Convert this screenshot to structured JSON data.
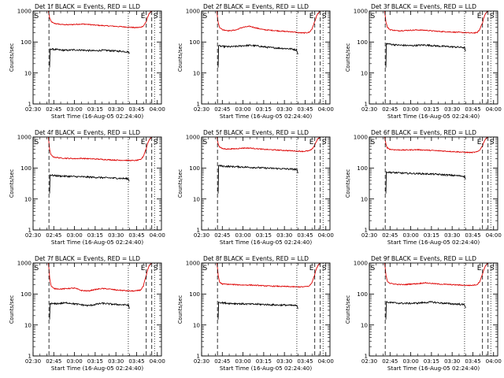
{
  "figure": {
    "background": "#ffffff",
    "axis_color": "#000000"
  },
  "shared": {
    "ylabel": "Counts/sec",
    "xlabel": "Start Time (16-Aug-05 02:24:40)",
    "x_tick_labels": [
      "02:30",
      "02:45",
      "03:00",
      "03:15",
      "03:30",
      "03:45",
      "04:00"
    ],
    "y_tick_labels": [
      "1",
      "10",
      "100",
      "1000"
    ],
    "marker_labels": [
      "S",
      "E",
      "S"
    ],
    "events_color": "#000000",
    "lld_color": "#dd0000"
  },
  "chart_data": [
    {
      "type": "line",
      "title": "Det 1f BLACK = Events, RED = LLD",
      "xlabel": "Start Time (16-Aug-05 02:24:40)",
      "ylabel": "Counts/sec",
      "xlim_minutes_after_0230": [
        0,
        93
      ],
      "ylim": [
        1,
        1000
      ],
      "yscale": "log",
      "vlines_minutes": {
        "dashed": [
          11.5,
          82,
          86
        ],
        "dotted": [
          69,
          88
        ]
      },
      "series": [
        {
          "name": "LLD",
          "color": "#dd0000",
          "x": [
            11,
            11.5,
            12,
            13,
            15,
            20,
            25,
            30,
            35,
            40,
            45,
            50,
            55,
            60,
            65,
            70,
            74,
            78,
            80,
            82,
            84,
            86
          ],
          "values": [
            1000,
            800,
            600,
            460,
            400,
            370,
            360,
            370,
            380,
            370,
            350,
            340,
            330,
            320,
            310,
            300,
            290,
            300,
            330,
            450,
            800,
            1000
          ]
        },
        {
          "name": "Events",
          "color": "#000000",
          "x": [
            12,
            12.2,
            15,
            20,
            25,
            30,
            35,
            40,
            45,
            50,
            55,
            60,
            65,
            69,
            70
          ],
          "values": [
            15,
            60,
            58,
            55,
            54,
            56,
            55,
            53,
            52,
            54,
            53,
            51,
            50,
            48,
            40
          ]
        }
      ]
    },
    {
      "type": "line",
      "title": "Det 2f BLACK = Events, RED = LLD",
      "xlabel": "Start Time (16-Aug-05 02:24:40)",
      "ylabel": "Counts/sec",
      "xlim_minutes_after_0230": [
        0,
        93
      ],
      "ylim": [
        1,
        1000
      ],
      "yscale": "log",
      "vlines_minutes": {
        "dashed": [
          11.5,
          82,
          86
        ],
        "dotted": [
          69,
          88
        ]
      },
      "series": [
        {
          "name": "LLD",
          "color": "#dd0000",
          "x": [
            11,
            11.5,
            12,
            13,
            15,
            20,
            25,
            30,
            35,
            40,
            45,
            50,
            55,
            60,
            65,
            70,
            74,
            78,
            80,
            82,
            84,
            86
          ],
          "values": [
            1000,
            650,
            420,
            300,
            250,
            230,
            245,
            300,
            320,
            280,
            250,
            240,
            230,
            220,
            215,
            200,
            195,
            205,
            260,
            450,
            800,
            1000
          ]
        },
        {
          "name": "Events",
          "color": "#000000",
          "x": [
            12,
            12.2,
            15,
            20,
            25,
            30,
            35,
            40,
            45,
            50,
            55,
            60,
            65,
            69,
            70
          ],
          "values": [
            15,
            75,
            72,
            70,
            72,
            76,
            78,
            75,
            70,
            66,
            64,
            62,
            60,
            55,
            35
          ]
        }
      ]
    },
    {
      "type": "line",
      "title": "Det 3f BLACK = Events, RED = LLD",
      "xlabel": "Start Time (16-Aug-05 02:24:40)",
      "ylabel": "Counts/sec",
      "xlim_minutes_after_0230": [
        0,
        93
      ],
      "ylim": [
        1,
        1000
      ],
      "yscale": "log",
      "vlines_minutes": {
        "dashed": [
          11.5,
          82,
          86
        ],
        "dotted": [
          69,
          88
        ]
      },
      "series": [
        {
          "name": "LLD",
          "color": "#dd0000",
          "x": [
            11,
            11.5,
            12,
            13,
            15,
            20,
            25,
            30,
            35,
            40,
            45,
            50,
            55,
            60,
            65,
            70,
            74,
            78,
            80,
            82,
            84,
            86
          ],
          "values": [
            1000,
            700,
            450,
            300,
            250,
            230,
            235,
            240,
            245,
            240,
            230,
            220,
            215,
            210,
            205,
            200,
            195,
            200,
            250,
            420,
            800,
            1000
          ]
        },
        {
          "name": "Events",
          "color": "#000000",
          "x": [
            12,
            12.2,
            15,
            20,
            25,
            30,
            35,
            40,
            45,
            50,
            55,
            60,
            65,
            69,
            70
          ],
          "values": [
            15,
            90,
            85,
            80,
            78,
            76,
            78,
            80,
            77,
            74,
            72,
            70,
            68,
            66,
            45
          ]
        }
      ]
    },
    {
      "type": "line",
      "title": "Det 4f BLACK = Events, RED = LLD",
      "xlabel": "Start Time (16-Aug-05 02:24:40)",
      "ylabel": "Counts/sec",
      "xlim_minutes_after_0230": [
        0,
        93
      ],
      "ylim": [
        1,
        1000
      ],
      "yscale": "log",
      "vlines_minutes": {
        "dashed": [
          11.5,
          82,
          86
        ],
        "dotted": [
          69,
          88
        ]
      },
      "series": [
        {
          "name": "LLD",
          "color": "#dd0000",
          "x": [
            11,
            11.5,
            12,
            13,
            15,
            20,
            25,
            30,
            35,
            40,
            45,
            50,
            55,
            60,
            65,
            70,
            74,
            78,
            80,
            82,
            84,
            86
          ],
          "values": [
            1000,
            650,
            380,
            260,
            225,
            210,
            205,
            200,
            205,
            200,
            195,
            190,
            185,
            180,
            178,
            175,
            175,
            185,
            240,
            420,
            800,
            1000
          ]
        },
        {
          "name": "Events",
          "color": "#000000",
          "x": [
            12,
            12.2,
            15,
            20,
            25,
            30,
            35,
            40,
            45,
            50,
            55,
            60,
            65,
            69,
            70
          ],
          "values": [
            15,
            60,
            57,
            55,
            54,
            53,
            52,
            51,
            50,
            49,
            48,
            47,
            46,
            45,
            35
          ]
        }
      ]
    },
    {
      "type": "line",
      "title": "Det 5f BLACK = Events, RED = LLD",
      "xlabel": "Start Time (16-Aug-05 02:24:40)",
      "ylabel": "Counts/sec",
      "xlim_minutes_after_0230": [
        0,
        93
      ],
      "ylim": [
        1,
        1000
      ],
      "yscale": "log",
      "vlines_minutes": {
        "dashed": [
          11.5,
          82,
          86
        ],
        "dotted": [
          69,
          88
        ]
      },
      "series": [
        {
          "name": "LLD",
          "color": "#dd0000",
          "x": [
            11,
            11.5,
            12,
            13,
            15,
            20,
            25,
            30,
            35,
            40,
            45,
            50,
            55,
            60,
            65,
            70,
            74,
            78,
            80,
            82,
            84,
            86
          ],
          "values": [
            1000,
            800,
            600,
            480,
            420,
            410,
            420,
            440,
            440,
            420,
            400,
            390,
            380,
            370,
            360,
            350,
            345,
            360,
            400,
            550,
            850,
            1000
          ]
        },
        {
          "name": "Events",
          "color": "#000000",
          "x": [
            12,
            12.2,
            15,
            20,
            25,
            30,
            35,
            40,
            45,
            50,
            55,
            60,
            65,
            69,
            70
          ],
          "values": [
            15,
            120,
            115,
            112,
            110,
            108,
            105,
            103,
            100,
            98,
            96,
            94,
            92,
            90,
            60
          ]
        }
      ]
    },
    {
      "type": "line",
      "title": "Det 6f BLACK = Events, RED = LLD",
      "xlabel": "Start Time (16-Aug-05 02:24:40)",
      "ylabel": "Counts/sec",
      "xlim_minutes_after_0230": [
        0,
        93
      ],
      "ylim": [
        1,
        1000
      ],
      "yscale": "log",
      "vlines_minutes": {
        "dashed": [
          11.5,
          82,
          86
        ],
        "dotted": [
          69,
          88
        ]
      },
      "series": [
        {
          "name": "LLD",
          "color": "#dd0000",
          "x": [
            11,
            11.5,
            12,
            13,
            15,
            20,
            25,
            30,
            35,
            40,
            45,
            50,
            55,
            60,
            65,
            70,
            74,
            78,
            80,
            82,
            84,
            86
          ],
          "values": [
            1000,
            800,
            580,
            450,
            400,
            385,
            380,
            385,
            390,
            380,
            370,
            360,
            350,
            340,
            330,
            320,
            315,
            330,
            380,
            520,
            850,
            1000
          ]
        },
        {
          "name": "Events",
          "color": "#000000",
          "x": [
            12,
            12.2,
            15,
            20,
            25,
            30,
            35,
            40,
            45,
            50,
            55,
            60,
            65,
            69,
            70
          ],
          "values": [
            15,
            75,
            72,
            70,
            68,
            67,
            66,
            65,
            64,
            62,
            60,
            58,
            56,
            54,
            40
          ]
        }
      ]
    },
    {
      "type": "line",
      "title": "Det 7f BLACK = Events, RED = LLD",
      "xlabel": "Start Time (16-Aug-05 02:24:40)",
      "ylabel": "Counts/sec",
      "xlim_minutes_after_0230": [
        0,
        93
      ],
      "ylim": [
        1,
        1000
      ],
      "yscale": "log",
      "vlines_minutes": {
        "dashed": [
          11.5,
          82,
          86
        ],
        "dotted": [
          69,
          88
        ]
      },
      "series": [
        {
          "name": "LLD",
          "color": "#dd0000",
          "x": [
            11,
            11.5,
            12,
            13,
            15,
            20,
            25,
            30,
            35,
            40,
            45,
            50,
            55,
            60,
            65,
            70,
            74,
            78,
            80,
            82,
            84,
            86
          ],
          "values": [
            1000,
            650,
            330,
            180,
            150,
            145,
            150,
            155,
            130,
            125,
            140,
            150,
            145,
            135,
            130,
            125,
            125,
            135,
            180,
            380,
            800,
            1000
          ]
        },
        {
          "name": "Events",
          "color": "#000000",
          "x": [
            12,
            12.2,
            15,
            20,
            25,
            30,
            35,
            40,
            45,
            50,
            55,
            60,
            65,
            69,
            70
          ],
          "values": [
            15,
            50,
            48,
            50,
            52,
            48,
            45,
            42,
            46,
            50,
            48,
            46,
            45,
            44,
            30
          ]
        }
      ]
    },
    {
      "type": "line",
      "title": "Det 8f BLACK = Events, RED = LLD",
      "xlabel": "Start Time (16-Aug-05 02:24:40)",
      "ylabel": "Counts/sec",
      "xlim_minutes_after_0230": [
        0,
        93
      ],
      "ylim": [
        1,
        1000
      ],
      "yscale": "log",
      "vlines_minutes": {
        "dashed": [
          11.5,
          82,
          86
        ],
        "dotted": [
          69,
          88
        ]
      },
      "series": [
        {
          "name": "LLD",
          "color": "#dd0000",
          "x": [
            11,
            11.5,
            12,
            13,
            15,
            20,
            25,
            30,
            35,
            40,
            45,
            50,
            55,
            60,
            65,
            70,
            74,
            78,
            80,
            82,
            84,
            86
          ],
          "values": [
            1000,
            700,
            400,
            240,
            210,
            205,
            200,
            195,
            195,
            190,
            185,
            180,
            178,
            175,
            172,
            170,
            170,
            180,
            230,
            420,
            800,
            1000
          ]
        },
        {
          "name": "Events",
          "color": "#000000",
          "x": [
            12,
            12.2,
            15,
            20,
            25,
            30,
            35,
            40,
            45,
            50,
            55,
            60,
            65,
            69,
            70
          ],
          "values": [
            15,
            55,
            52,
            50,
            49,
            48,
            47,
            47,
            46,
            45,
            44,
            44,
            43,
            42,
            30
          ]
        }
      ]
    },
    {
      "type": "line",
      "title": "Det 9f BLACK = Events, RED = LLD",
      "xlabel": "Start Time (16-Aug-05 02:24:40)",
      "ylabel": "Counts/sec",
      "xlim_minutes_after_0230": [
        0,
        93
      ],
      "ylim": [
        1,
        1000
      ],
      "yscale": "log",
      "vlines_minutes": {
        "dashed": [
          11.5,
          82,
          86
        ],
        "dotted": [
          69,
          88
        ]
      },
      "series": [
        {
          "name": "LLD",
          "color": "#dd0000",
          "x": [
            11,
            11.5,
            12,
            13,
            15,
            20,
            25,
            30,
            35,
            40,
            45,
            50,
            55,
            60,
            65,
            70,
            74,
            78,
            80,
            82,
            84,
            86
          ],
          "values": [
            1000,
            700,
            420,
            260,
            220,
            205,
            200,
            210,
            215,
            230,
            220,
            210,
            205,
            200,
            195,
            190,
            190,
            200,
            250,
            430,
            800,
            1000
          ]
        },
        {
          "name": "Events",
          "color": "#000000",
          "x": [
            12,
            12.2,
            15,
            20,
            25,
            30,
            35,
            40,
            45,
            50,
            55,
            60,
            65,
            69,
            70
          ],
          "values": [
            15,
            55,
            53,
            51,
            50,
            50,
            51,
            53,
            55,
            52,
            50,
            48,
            47,
            45,
            32
          ]
        }
      ]
    }
  ]
}
